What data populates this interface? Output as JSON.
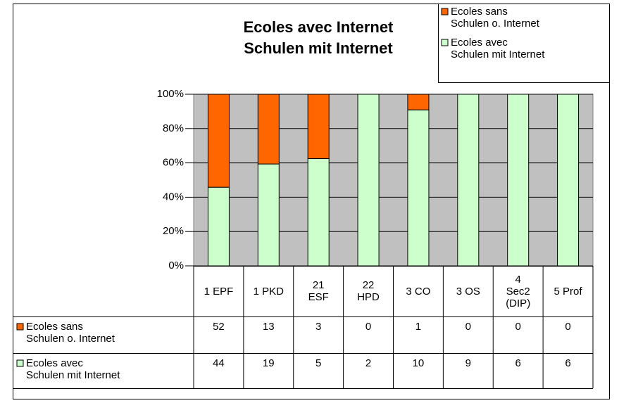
{
  "chart_data": {
    "type": "bar",
    "stacking": "percent",
    "title": "Ecoles avec Internet\nSchulen mit Internet",
    "categories": [
      "1 EPF",
      "1 PKD",
      "21\nESF",
      "22\nHPD",
      "3 CO",
      "3 OS",
      "4\nSec2\n(DIP)",
      "5 Prof"
    ],
    "series": [
      {
        "name": "Ecoles sans\nSchulen o. Internet",
        "color": "#ff6600",
        "values": [
          52,
          13,
          3,
          0,
          1,
          0,
          0,
          0
        ]
      },
      {
        "name": "Ecoles avec\nSchulen mit Internet",
        "color": "#ccffcc",
        "values": [
          44,
          19,
          5,
          2,
          10,
          9,
          6,
          6
        ]
      }
    ],
    "ylim": [
      0,
      100
    ],
    "yticks": [
      {
        "value": 0,
        "label": "0%"
      },
      {
        "value": 20,
        "label": "20%"
      },
      {
        "value": 40,
        "label": "40%"
      },
      {
        "value": 60,
        "label": "60%"
      },
      {
        "value": 80,
        "label": "80%"
      },
      {
        "value": 100,
        "label": "100%"
      }
    ],
    "legend": "top-right",
    "data_table": true,
    "plot_background": "#c0c0c0"
  }
}
